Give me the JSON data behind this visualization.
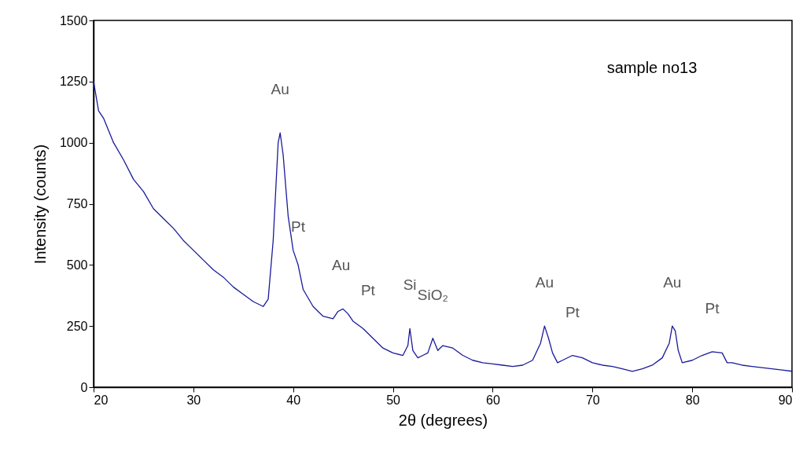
{
  "chart_data": {
    "type": "line",
    "xlabel": "2θ (degrees)",
    "ylabel": "Intensity (counts)",
    "x": [
      20,
      20.5,
      21,
      22,
      23,
      24,
      25,
      26,
      27,
      28,
      29,
      30,
      31,
      32,
      33,
      34,
      35,
      36,
      37,
      37.5,
      38,
      38.5,
      38.7,
      39,
      39.5,
      40,
      40.5,
      41,
      42,
      43,
      44,
      44.5,
      45,
      45.5,
      46,
      47,
      48,
      49,
      50,
      51,
      51.5,
      51.7,
      52,
      52.5,
      53,
      53.5,
      54,
      54.5,
      55,
      56,
      57,
      58,
      59,
      60,
      61,
      62,
      63,
      64,
      64.8,
      65.2,
      65.6,
      66,
      66.5,
      67,
      68,
      69,
      70,
      71,
      72,
      73,
      74,
      75,
      76,
      77,
      77.7,
      78,
      78.3,
      78.6,
      79,
      80,
      81,
      82,
      83,
      83.5,
      84,
      85,
      86,
      87,
      88,
      89,
      90
    ],
    "series": [
      {
        "color": "#1a1a9c",
        "values": [
          1250,
          1130,
          1100,
          1000,
          930,
          850,
          800,
          730,
          690,
          650,
          600,
          560,
          520,
          480,
          450,
          410,
          380,
          350,
          330,
          360,
          600,
          1000,
          1040,
          950,
          700,
          560,
          500,
          400,
          330,
          290,
          280,
          310,
          320,
          300,
          270,
          240,
          200,
          160,
          140,
          130,
          170,
          240,
          150,
          120,
          130,
          140,
          200,
          150,
          170,
          160,
          130,
          110,
          100,
          95,
          90,
          85,
          90,
          110,
          180,
          250,
          200,
          140,
          100,
          110,
          130,
          120,
          100,
          90,
          85,
          75,
          65,
          75,
          90,
          120,
          180,
          250,
          230,
          150,
          100,
          110,
          130,
          145,
          140,
          100,
          100,
          90,
          85,
          80,
          75,
          70,
          65
        ]
      }
    ],
    "xlim": [
      20,
      90
    ],
    "xticks": [
      20,
      30,
      40,
      50,
      60,
      70,
      80,
      90
    ],
    "ylim": [
      0,
      1500
    ],
    "yticks": [
      0,
      250,
      500,
      750,
      1000,
      1250,
      1500
    ],
    "grid": false,
    "legend": false,
    "marker": "none",
    "line_style": "solid",
    "annotations": [
      "sample no13",
      {
        "text": "Au",
        "x": 38.7,
        "y": 1040
      },
      {
        "text": "Pt",
        "x": 40.5,
        "y": 480
      },
      {
        "text": "Au",
        "x": 44.8,
        "y": 320
      },
      {
        "text": "Pt",
        "x": 47.5,
        "y": 220
      },
      {
        "text": "Si",
        "x": 51.7,
        "y": 240
      },
      {
        "text": "SiO₂",
        "x": 54,
        "y": 200
      },
      {
        "text": "Au",
        "x": 65.2,
        "y": 250
      },
      {
        "text": "Pt",
        "x": 68,
        "y": 130
      },
      {
        "text": "Au",
        "x": 78,
        "y": 250
      },
      {
        "text": "Pt",
        "x": 82,
        "y": 145
      }
    ]
  }
}
